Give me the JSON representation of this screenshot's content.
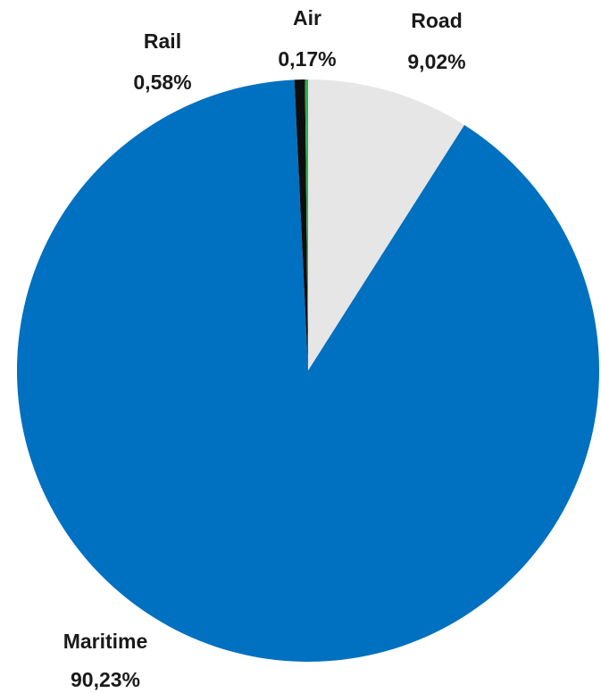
{
  "chart_data": {
    "type": "pie",
    "title": "",
    "slices": [
      {
        "label": "Road",
        "value": 9.02,
        "value_text": "9,02%",
        "color": "#e6e6e6"
      },
      {
        "label": "Maritime",
        "value": 90.23,
        "value_text": "90,23%",
        "color": "#0070c0"
      },
      {
        "label": "Rail",
        "value": 0.58,
        "value_text": "0,58%",
        "color": "#0d0d0d"
      },
      {
        "label": "Air",
        "value": 0.17,
        "value_text": "0,17%",
        "color": "#2db04b"
      }
    ],
    "start_angle": "12 o'clock",
    "direction": "clockwise",
    "legend": "none"
  }
}
